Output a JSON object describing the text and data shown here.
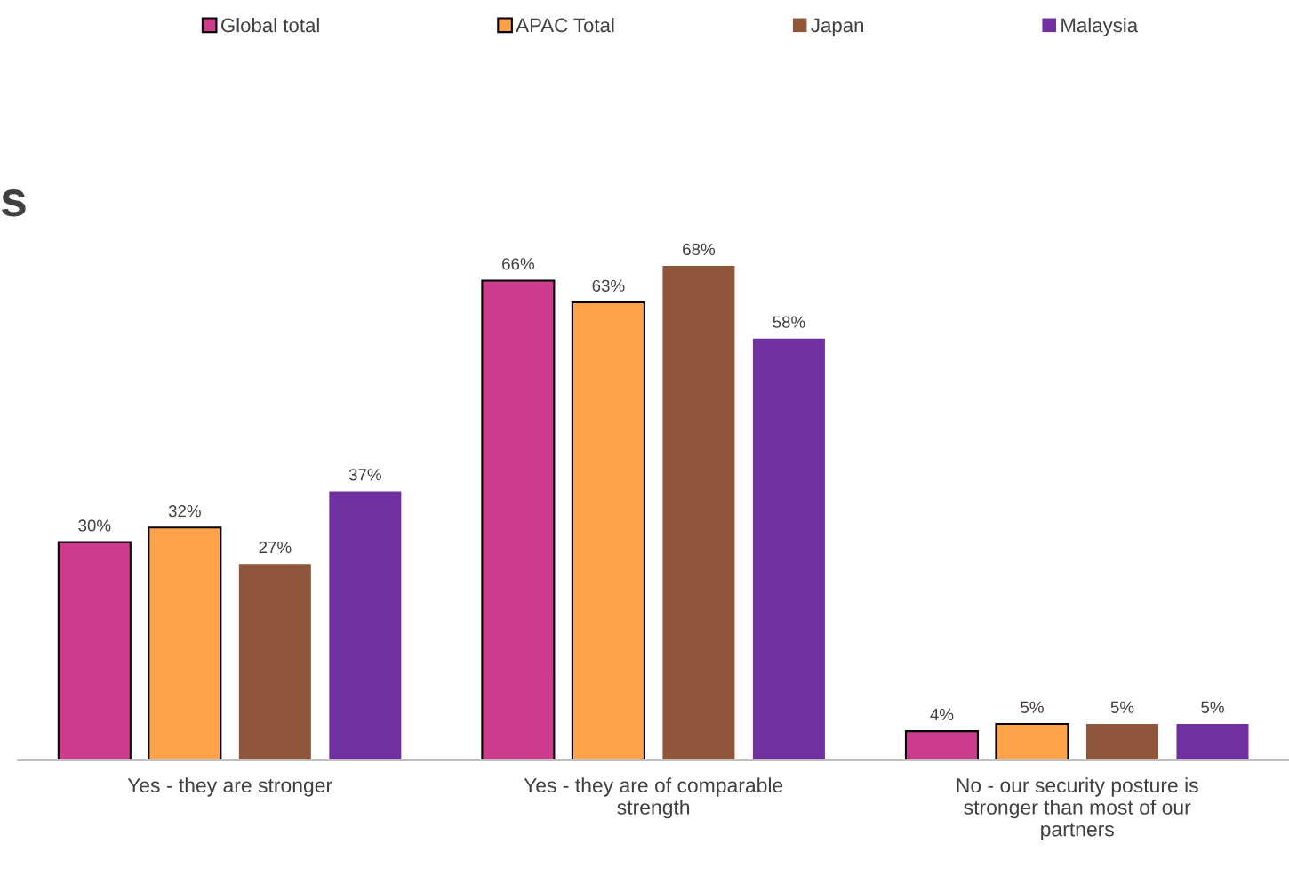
{
  "chart_data": {
    "type": "bar",
    "categories": [
      "Yes - they are stronger",
      "Yes - they are of comparable strength",
      "No - our security posture is stronger than most of our partners"
    ],
    "series": [
      {
        "name": "Global total",
        "color": "#cc3d8d",
        "values": [
          30,
          66,
          4
        ],
        "value_labels": [
          "30%",
          "66%",
          "4%"
        ]
      },
      {
        "name": "APAC Total",
        "color": "#ffa24a",
        "values": [
          32,
          63,
          5
        ],
        "value_labels": [
          "32%",
          "63%",
          "5%"
        ]
      },
      {
        "name": "Japan",
        "color": "#8f563b",
        "values": [
          27,
          68,
          5
        ],
        "value_labels": [
          "27%",
          "68%",
          "5%"
        ]
      },
      {
        "name": "Malaysia",
        "color": "#70309f",
        "values": [
          37,
          58,
          5
        ],
        "value_labels": [
          "37%",
          "58%",
          "5%"
        ]
      }
    ],
    "legend": "top",
    "grid": false,
    "annotations": [
      "s"
    ]
  }
}
